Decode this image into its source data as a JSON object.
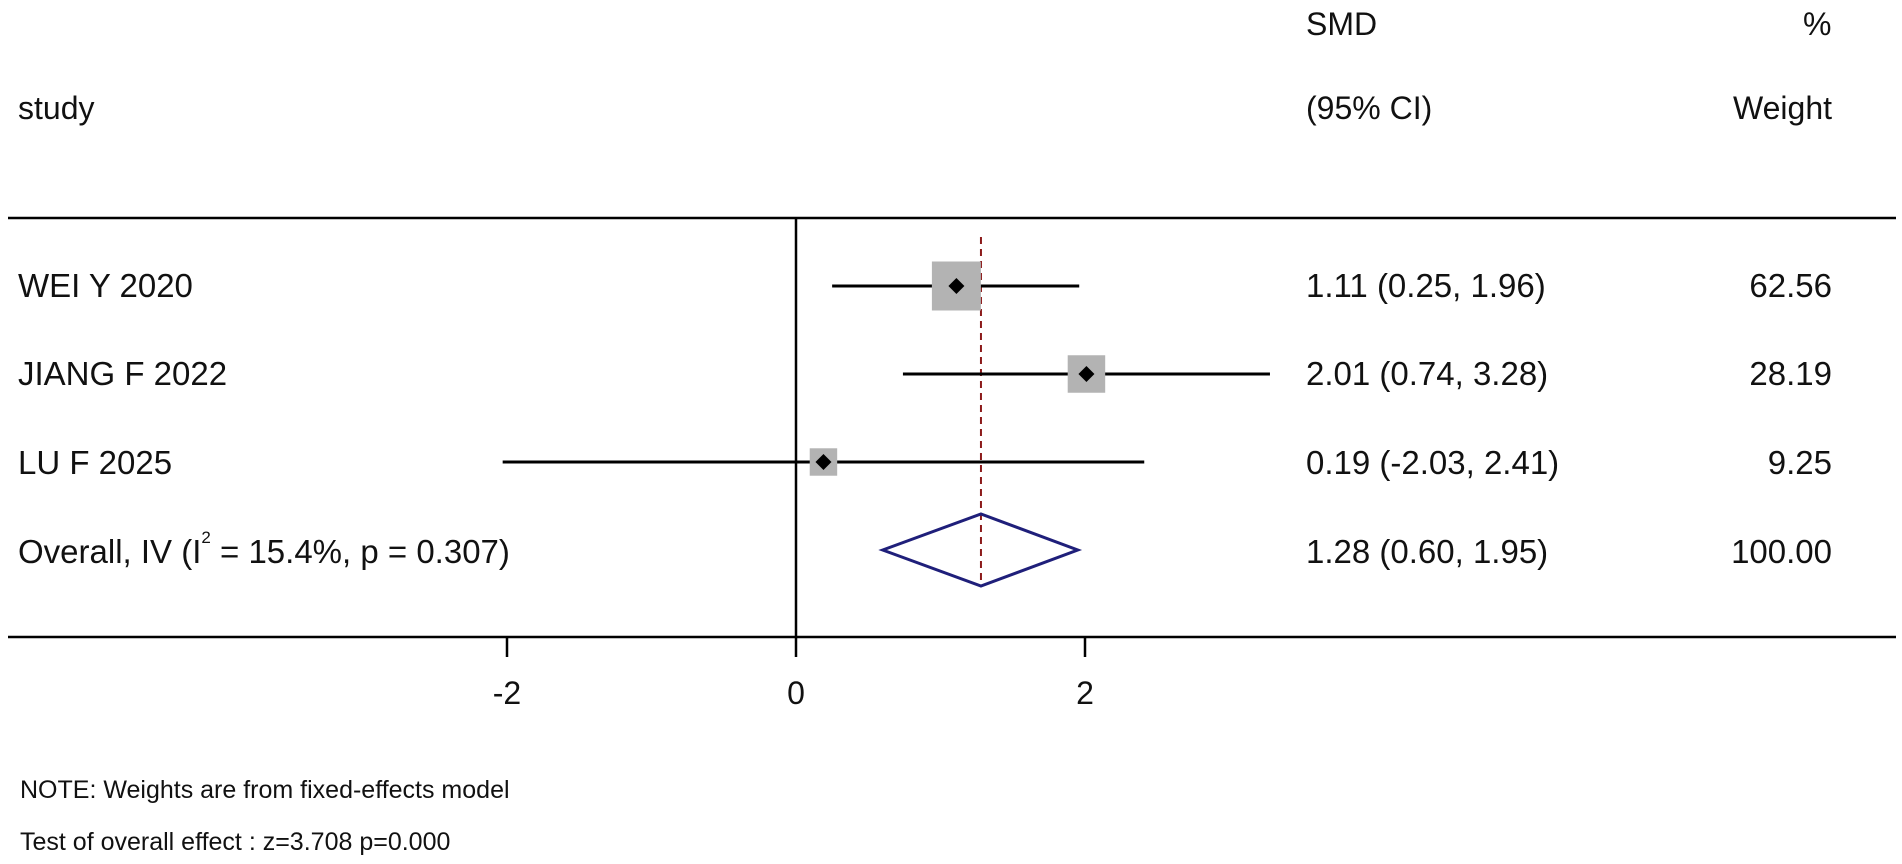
{
  "header": {
    "study_label": "study",
    "effect_label_line1": "SMD",
    "effect_label_line2": "(95% CI)",
    "weight_label_line1": "%",
    "weight_label_line2": "Weight"
  },
  "chart_data": {
    "type": "forest",
    "xlim": [
      -2,
      3.28
    ],
    "x_ticks": [
      "-2",
      "0",
      "2"
    ],
    "x_tick_values": [
      -2,
      0,
      2
    ],
    "null_line": 0,
    "studies": [
      {
        "name": "WEI Y 2020",
        "smd": 1.11,
        "ci_low": 0.25,
        "ci_high": 1.96,
        "ci_text": "1.11 (0.25, 1.96)",
        "weight": 62.56,
        "weight_text": "62.56"
      },
      {
        "name": "JIANG F 2022",
        "smd": 2.01,
        "ci_low": 0.74,
        "ci_high": 3.28,
        "ci_text": "2.01 (0.74, 3.28)",
        "weight": 28.19,
        "weight_text": "28.19"
      },
      {
        "name": "LU F 2025",
        "smd": 0.19,
        "ci_low": -2.03,
        "ci_high": 2.41,
        "ci_text": "0.19 (-2.03, 2.41)",
        "weight": 9.25,
        "weight_text": "9.25"
      }
    ],
    "overall": {
      "label_prefix": "Overall, IV (I",
      "label_sup": "2",
      "label_suffix": " = 15.4%, p = 0.307)",
      "smd": 1.28,
      "ci_low": 0.6,
      "ci_high": 1.95,
      "ci_text": "1.28 (0.60, 1.95)",
      "weight_text": "100.00"
    },
    "colors": {
      "box": "#b3b3b3",
      "overall_diamond": "#1f1f7a",
      "pooled_line": "#8b1a1a",
      "lines": "#000000"
    }
  },
  "notes": {
    "line1": "NOTE: Weights are from fixed-effects model",
    "line2": "Test of overall effect : z=3.708 p=0.000"
  }
}
